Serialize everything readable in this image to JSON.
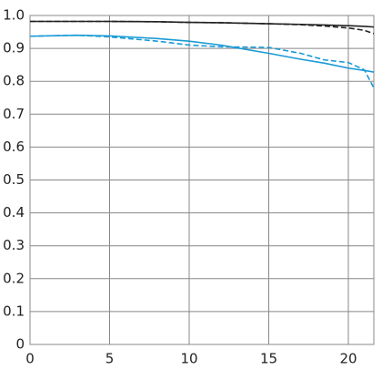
{
  "chart_data": {
    "type": "line",
    "x": [
      0,
      3,
      5,
      8,
      10,
      12,
      15,
      17,
      18.5,
      20,
      21,
      21.6
    ],
    "series": [
      {
        "color": "#222222",
        "dashed": false,
        "values": [
          0.982,
          0.982,
          0.982,
          0.981,
          0.979,
          0.978,
          0.975,
          0.973,
          0.971,
          0.969,
          0.967,
          0.965
        ]
      },
      {
        "color": "#222222",
        "dashed": true,
        "values": [
          0.982,
          0.982,
          0.982,
          0.981,
          0.979,
          0.978,
          0.975,
          0.972,
          0.968,
          0.962,
          0.955,
          0.945
        ]
      },
      {
        "color": "#1a9ad6",
        "dashed": false,
        "values": [
          0.937,
          0.94,
          0.938,
          0.93,
          0.922,
          0.91,
          0.885,
          0.867,
          0.855,
          0.84,
          0.833,
          0.828
        ]
      },
      {
        "color": "#1a9ad6",
        "dashed": true,
        "values": [
          0.937,
          0.94,
          0.935,
          0.922,
          0.91,
          0.905,
          0.903,
          0.885,
          0.865,
          0.857,
          0.835,
          0.78
        ]
      }
    ],
    "xlim": [
      0,
      21.6
    ],
    "ylim": [
      0,
      1
    ],
    "xticks": [
      0,
      5,
      10,
      15,
      20
    ],
    "yticks": [
      0,
      0.1,
      0.2,
      0.3,
      0.4,
      0.5,
      0.6,
      0.7,
      0.8,
      0.9,
      {
        "value": 1,
        "label": "1.0"
      }
    ],
    "grid": true
  }
}
